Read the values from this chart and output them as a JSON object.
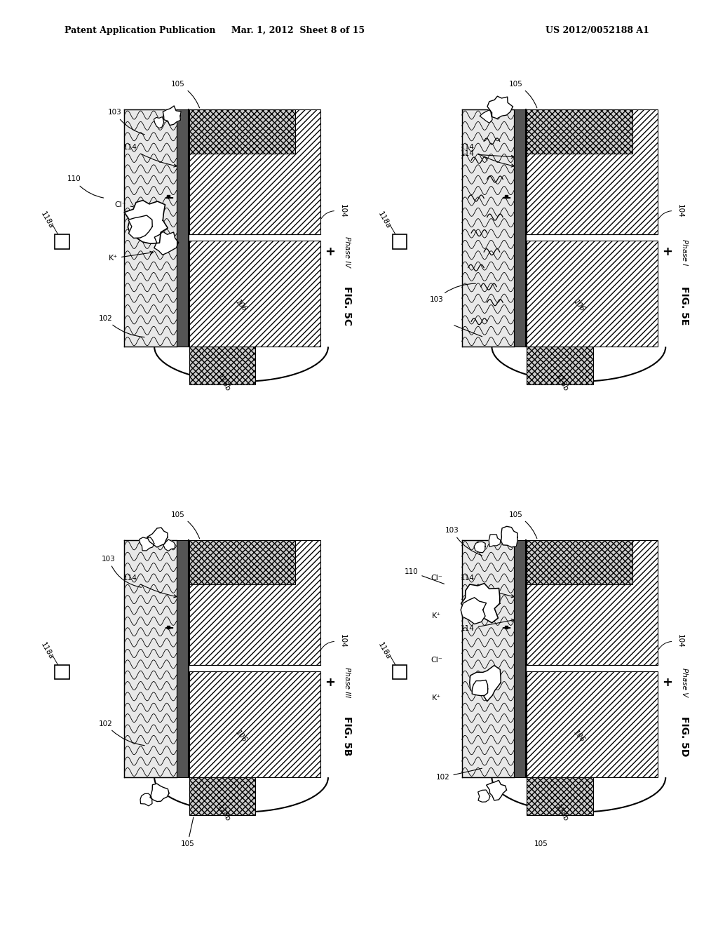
{
  "header_left": "Patent Application Publication",
  "header_mid": "Mar. 1, 2012  Sheet 8 of 15",
  "header_right": "US 2012/0052188 A1",
  "background_color": "#ffffff",
  "fig_labels": [
    "FIG. 5C",
    "FIG. 5E",
    "FIG. 5B",
    "FIG. 5D"
  ],
  "phase_labels": [
    "Phase IV",
    "Phase I",
    "Phase III",
    "Phase V"
  ],
  "text_color": "#000000",
  "hatch_diag": "////",
  "hatch_cross": "xxxx",
  "hatch_wave": "~~~~~"
}
